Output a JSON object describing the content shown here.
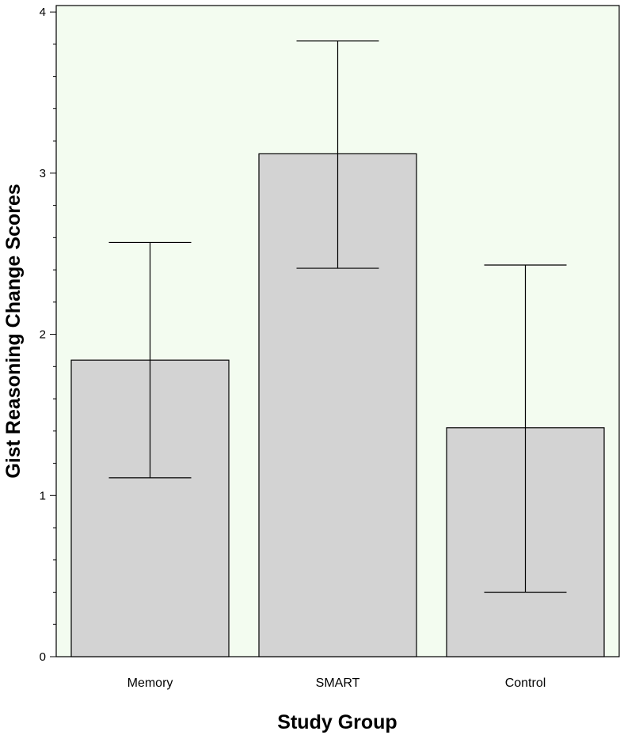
{
  "chart_data": {
    "type": "bar",
    "xlabel": "Study Group",
    "ylabel": "Gist Reasoning Change Scores",
    "categories": [
      "Memory",
      "SMART",
      "Control"
    ],
    "values": [
      1.84,
      3.12,
      1.42
    ],
    "error_low": [
      1.11,
      2.41,
      0.4
    ],
    "error_high": [
      2.57,
      3.82,
      2.43
    ],
    "ylim": [
      0,
      4.04
    ],
    "yticks": [
      0,
      1,
      2,
      3,
      4
    ],
    "grid": false,
    "bar_color": "#d3d3d3",
    "background_color": "#f3fcf0"
  }
}
